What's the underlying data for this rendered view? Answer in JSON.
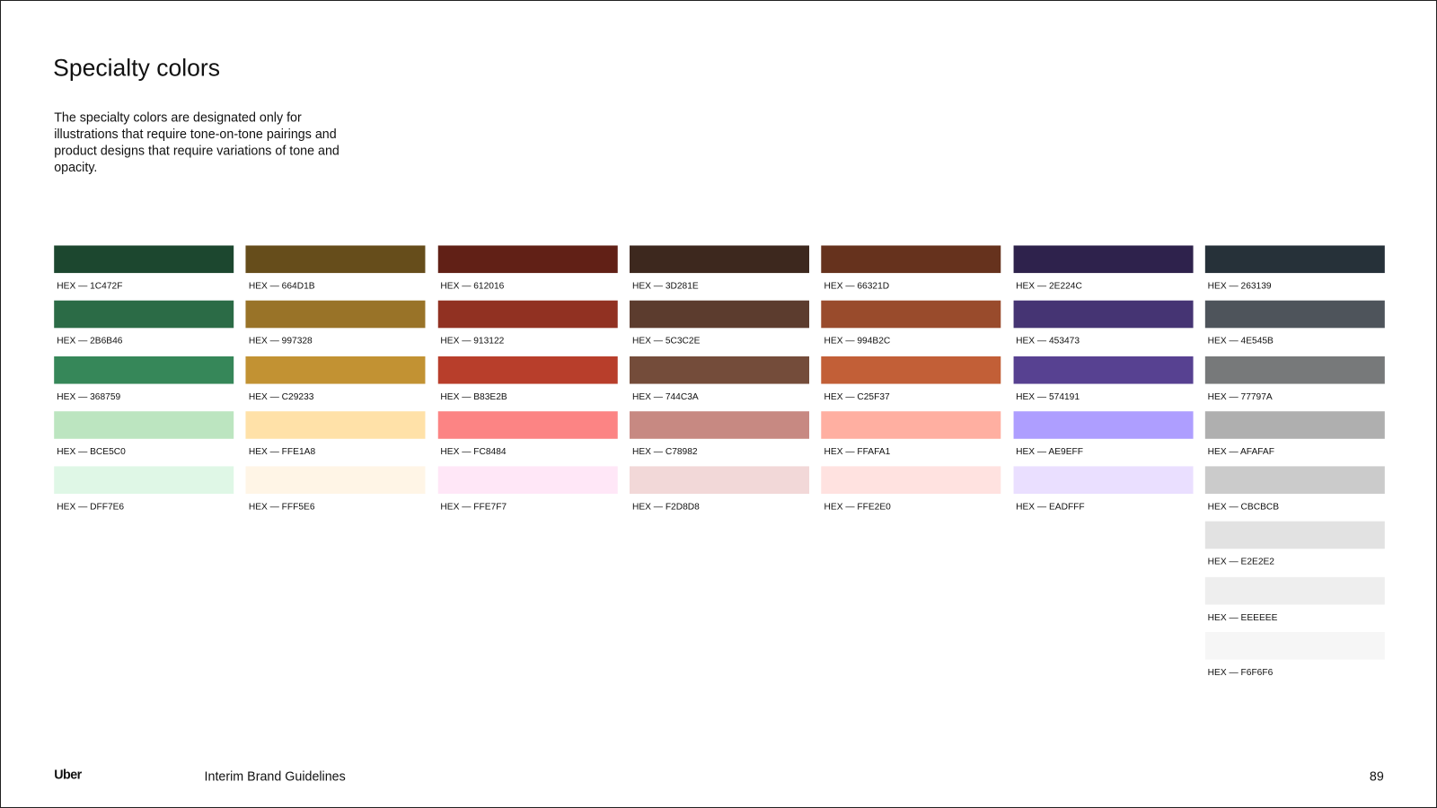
{
  "title": "Specialty colors",
  "description": "The specialty colors are designated only for illustrations that require tone-on-tone pairings and product designs that require variations of tone and opacity.",
  "label_prefix": "HEX — ",
  "columns": [
    [
      "1C472F",
      "2B6B46",
      "368759",
      "BCE5C0",
      "DFF7E6"
    ],
    [
      "664D1B",
      "997328",
      "C29233",
      "FFE1A8",
      "FFF5E6"
    ],
    [
      "612016",
      "913122",
      "B83E2B",
      "FC8484",
      "FFE7F7"
    ],
    [
      "3D281E",
      "5C3C2E",
      "744C3A",
      "C78982",
      "F2D8D8"
    ],
    [
      "66321D",
      "994B2C",
      "C25F37",
      "FFAFA1",
      "FFE2E0"
    ],
    [
      "2E224C",
      "453473",
      "574191",
      "AE9EFF",
      "EADFFF"
    ],
    [
      "263139",
      "4E545B",
      "77797A",
      "AFAFAF",
      "CBCBCB",
      "E2E2E2",
      "EEEEEE",
      "F6F6F6"
    ]
  ],
  "footer": {
    "logo": "Uber",
    "document_title": "Interim Brand Guidelines",
    "page_number": "89"
  }
}
